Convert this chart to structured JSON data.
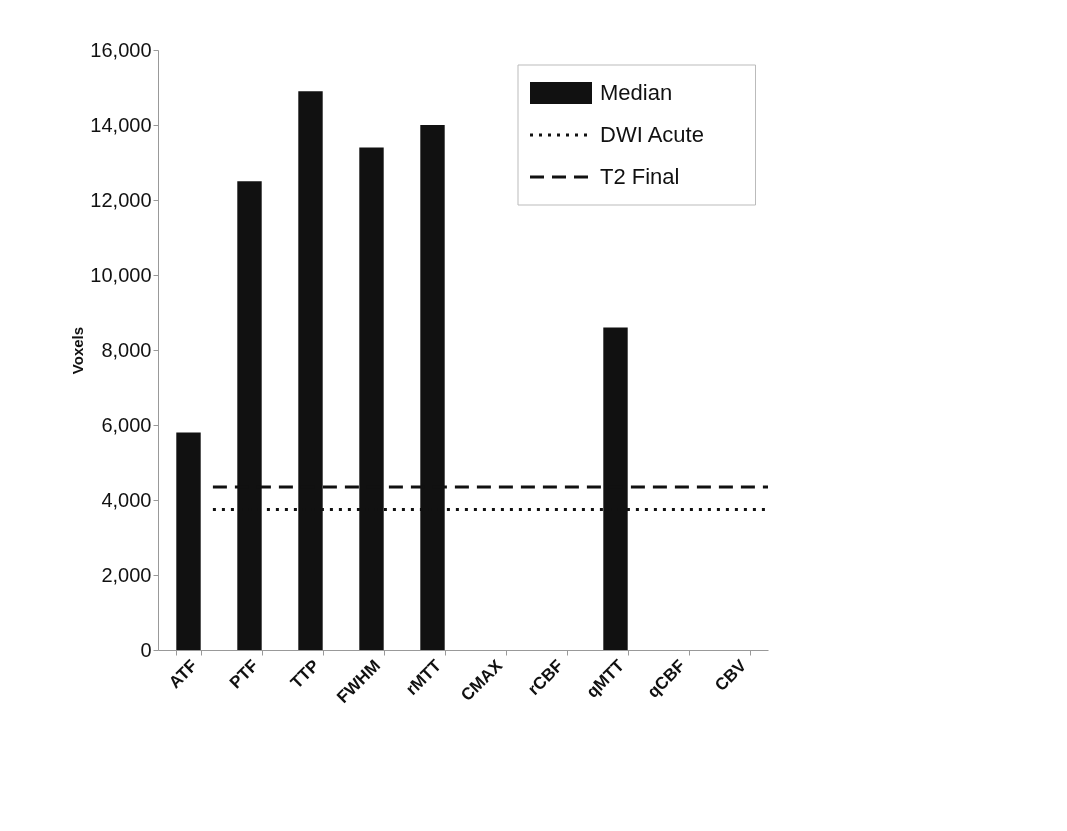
{
  "chart_data": {
    "type": "bar",
    "ylabel": "Voxels",
    "categories": [
      "ATF",
      "PTF",
      "TTP",
      "FWHM",
      "rMTT",
      "CMAX",
      "rCBF",
      "qMTT",
      "qCBF",
      "CBV"
    ],
    "series": [
      {
        "name": "Median",
        "color": "#111111",
        "values": [
          5800,
          12500,
          14900,
          13400,
          14000,
          null,
          null,
          8600,
          null,
          null
        ]
      }
    ],
    "ref_lines": [
      {
        "axis": "y",
        "value": 3750,
        "label": "DWI Acute",
        "color": "#111111",
        "line_style": "dotted"
      },
      {
        "axis": "y",
        "value": 4350,
        "label": "T2 Final",
        "color": "#111111",
        "line_style": "dashed"
      }
    ],
    "ylim": [
      0,
      16000
    ],
    "yticks": [
      0,
      {
        "value": 2000,
        "label": "2,000"
      },
      {
        "value": 4000,
        "label": "4,000"
      },
      {
        "value": 6000,
        "label": "6,000"
      },
      {
        "value": 8000,
        "label": "8,000"
      },
      {
        "value": 10000,
        "label": "10,000"
      },
      {
        "value": 12000,
        "label": "12,000"
      },
      {
        "value": 14000,
        "label": "14,000"
      },
      {
        "value": 16000,
        "label": "16,000"
      }
    ],
    "grid": false,
    "legend": "top right"
  }
}
